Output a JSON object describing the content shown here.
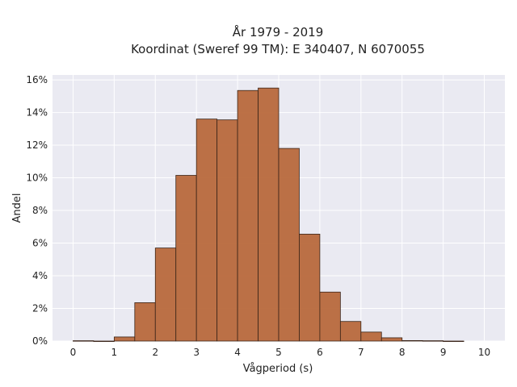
{
  "chart_data": {
    "type": "bar",
    "title_lines": [
      "År 1979 - 2019",
      "Koordinat (Sweref 99 TM): E 340407, N 6070055"
    ],
    "xlabel": "Vågperiod (s)",
    "ylabel": "Andel",
    "xlim": [
      -0.5,
      10.5
    ],
    "ylim": [
      0,
      16.3
    ],
    "x_ticks": [
      0,
      1,
      2,
      3,
      4,
      5,
      6,
      7,
      8,
      9,
      10
    ],
    "y_ticks": [
      0,
      2,
      4,
      6,
      8,
      10,
      12,
      14,
      16
    ],
    "y_tick_suffix": "%",
    "grid": true,
    "bar_width": 0.5,
    "bar_color": "#b8693c",
    "edge_color": "#3a2418",
    "plot_background": "#eaeaf2",
    "bins": [
      {
        "start": 0.0,
        "value": 0.02
      },
      {
        "start": 0.5,
        "value": 0.0
      },
      {
        "start": 1.0,
        "value": 0.25
      },
      {
        "start": 1.5,
        "value": 2.35
      },
      {
        "start": 2.0,
        "value": 5.7
      },
      {
        "start": 2.5,
        "value": 10.15
      },
      {
        "start": 3.0,
        "value": 13.6
      },
      {
        "start": 3.5,
        "value": 13.55
      },
      {
        "start": 4.0,
        "value": 15.35
      },
      {
        "start": 4.5,
        "value": 15.5
      },
      {
        "start": 5.0,
        "value": 11.8
      },
      {
        "start": 5.5,
        "value": 6.55
      },
      {
        "start": 6.0,
        "value": 3.0
      },
      {
        "start": 6.5,
        "value": 1.2
      },
      {
        "start": 7.0,
        "value": 0.55
      },
      {
        "start": 7.5,
        "value": 0.2
      },
      {
        "start": 8.0,
        "value": 0.03
      },
      {
        "start": 8.5,
        "value": 0.02
      },
      {
        "start": 9.0,
        "value": 0.0
      }
    ]
  }
}
